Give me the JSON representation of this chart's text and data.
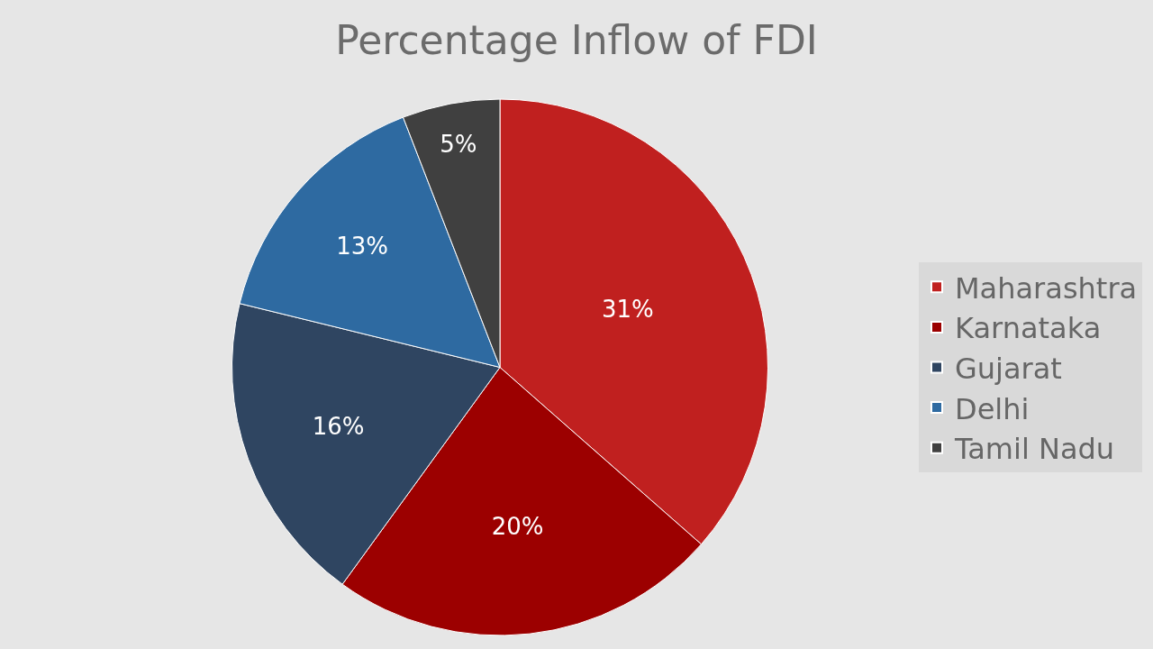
{
  "chart_data": {
    "type": "pie",
    "title": "Percentage Inflow of FDI",
    "categories": [
      "Maharashtra",
      "Karnataka",
      "Gujarat",
      "Delhi",
      "Tamil Nadu"
    ],
    "values": [
      31,
      20,
      16,
      13,
      5
    ],
    "value_labels": [
      "31%",
      "20%",
      "16%",
      "13%",
      "5%"
    ],
    "colors": [
      "#c0201f",
      "#9c0000",
      "#2f4561",
      "#2e6aa1",
      "#404040"
    ],
    "legend": "right"
  }
}
